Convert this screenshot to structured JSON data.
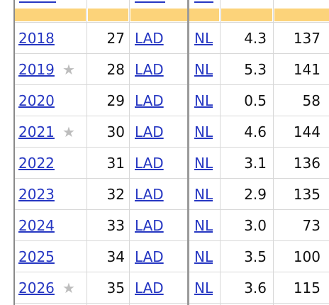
{
  "table": {
    "rows": [
      {
        "year": "2018",
        "age": "27",
        "team": "LAD",
        "league": "NL",
        "war": "4.3",
        "games": "137"
      },
      {
        "year": "2019",
        "star": "★",
        "age": "28",
        "team": "LAD",
        "league": "NL",
        "war": "5.3",
        "games": "141"
      },
      {
        "year": "2020",
        "age": "29",
        "team": "LAD",
        "league": "NL",
        "war": "0.5",
        "games": "58"
      },
      {
        "year": "2021",
        "star": "★",
        "age": "30",
        "team": "LAD",
        "league": "NL",
        "war": "4.6",
        "games": "144"
      },
      {
        "year": "2022",
        "age": "31",
        "team": "LAD",
        "league": "NL",
        "war": "3.1",
        "games": "136"
      },
      {
        "year": "2023",
        "age": "32",
        "team": "LAD",
        "league": "NL",
        "war": "2.9",
        "games": "135"
      },
      {
        "year": "2024",
        "age": "33",
        "team": "LAD",
        "league": "NL",
        "war": "3.0",
        "games": "73"
      },
      {
        "year": "2025",
        "age": "34",
        "team": "LAD",
        "league": "NL",
        "war": "3.5",
        "games": "100"
      },
      {
        "year": "2026",
        "star": "★",
        "age": "35",
        "team": "LAD",
        "league": "NL",
        "war": "3.6",
        "games": "115"
      }
    ]
  }
}
